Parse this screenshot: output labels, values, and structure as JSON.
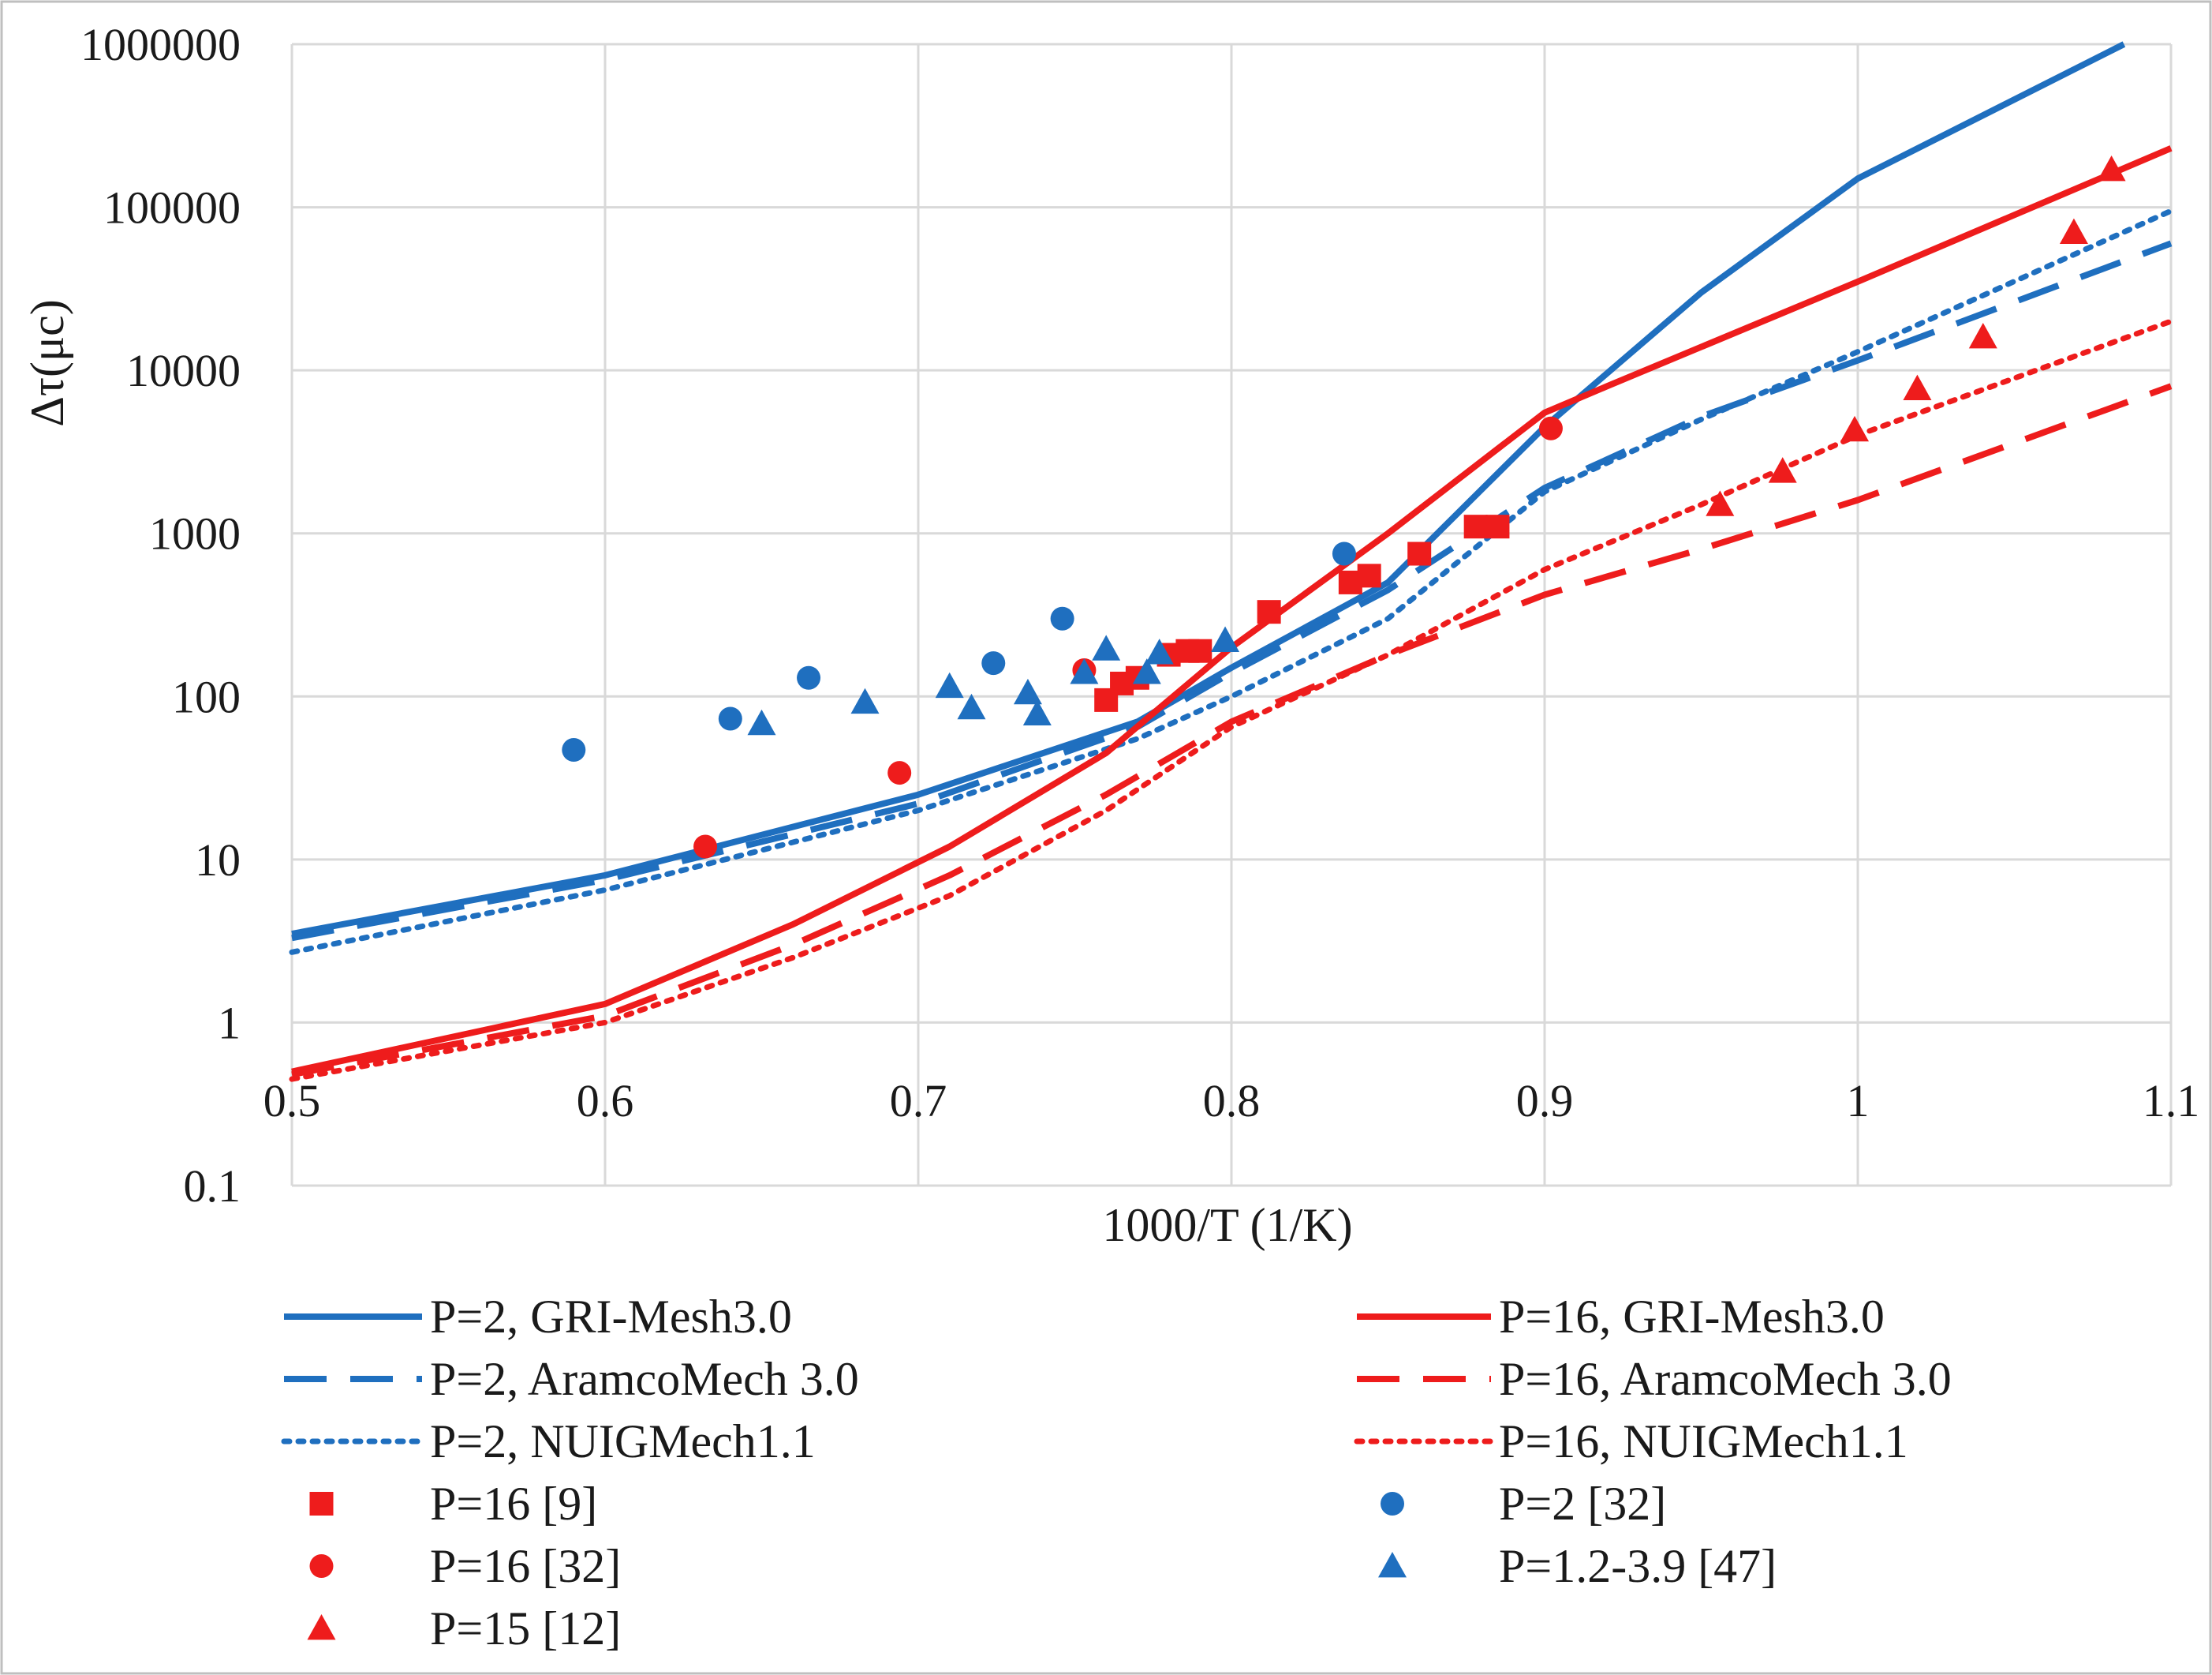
{
  "chart_data": {
    "type": "line",
    "title": "",
    "xlabel": "1000/T (1/K)",
    "ylabel": "Δτ(μc)",
    "xlim": [
      0.5,
      1.1
    ],
    "ylim": [
      0.1,
      1000000
    ],
    "yscale": "log",
    "grid": true,
    "x_ticks": [
      "0.5",
      "0.6",
      "0.7",
      "0.8",
      "0.9",
      "1",
      "1.1"
    ],
    "y_ticks": [
      "0.1",
      "1",
      "10",
      "100",
      "1000",
      "10000",
      "100000",
      "1000000"
    ],
    "colors": {
      "blue": "#1f6fbf",
      "red": "#ee1c1c"
    },
    "series": [
      {
        "name": "P=2, GRI-Mesh3.0",
        "kind": "line",
        "color": "#1f6fbf",
        "dash": "solid",
        "x": [
          0.5,
          0.6,
          0.7,
          0.77,
          0.8,
          0.85,
          0.9,
          0.95,
          1.0,
          1.085
        ],
        "y": [
          3.5,
          8,
          25,
          70,
          150,
          500,
          4500,
          30000,
          150000,
          1000000
        ]
      },
      {
        "name": "P=2, AramcoMech 3.0",
        "kind": "line",
        "color": "#1f6fbf",
        "dash": "dashed",
        "x": [
          0.5,
          0.6,
          0.7,
          0.77,
          0.8,
          0.85,
          0.9,
          0.95,
          1.0,
          1.1
        ],
        "y": [
          3.3,
          7.5,
          22,
          65,
          140,
          450,
          1900,
          5200,
          11500,
          60000
        ]
      },
      {
        "name": "P=2, NUIGMech1.1",
        "kind": "line",
        "color": "#1f6fbf",
        "dash": "dotted",
        "x": [
          0.5,
          0.6,
          0.7,
          0.77,
          0.8,
          0.85,
          0.9,
          0.95,
          1.0,
          1.1
        ],
        "y": [
          2.7,
          6.5,
          20,
          55,
          100,
          300,
          1800,
          5000,
          13000,
          95000
        ]
      },
      {
        "name": "P=16, GRI-Mesh3.0",
        "kind": "line",
        "color": "#ee1c1c",
        "dash": "solid",
        "x": [
          0.5,
          0.6,
          0.66,
          0.71,
          0.76,
          0.8,
          0.85,
          0.9,
          0.92,
          1.0,
          1.1
        ],
        "y": [
          0.5,
          1.3,
          4,
          12,
          45,
          200,
          1000,
          5500,
          8000,
          35000,
          230000
        ]
      },
      {
        "name": "P=16, AramcoMech 3.0",
        "kind": "line",
        "color": "#ee1c1c",
        "dash": "dashed",
        "x": [
          0.5,
          0.6,
          0.66,
          0.71,
          0.76,
          0.8,
          0.85,
          0.9,
          0.95,
          1.0,
          1.1
        ],
        "y": [
          0.48,
          1.1,
          3,
          8,
          25,
          70,
          180,
          420,
          800,
          1600,
          8000
        ]
      },
      {
        "name": "P=16, NUIGMech1.1",
        "kind": "line",
        "color": "#ee1c1c",
        "dash": "dotted",
        "x": [
          0.5,
          0.6,
          0.66,
          0.71,
          0.76,
          0.8,
          0.85,
          0.9,
          0.95,
          1.0,
          1.1
        ],
        "y": [
          0.45,
          1.0,
          2.5,
          6,
          20,
          65,
          180,
          600,
          1500,
          4000,
          20000
        ]
      },
      {
        "name": "P=16 [9]",
        "kind": "scatter",
        "marker": "square",
        "color": "#ee1c1c",
        "x": [
          0.76,
          0.765,
          0.77,
          0.78,
          0.786,
          0.79,
          0.812,
          0.838,
          0.844,
          0.86,
          0.878,
          0.885
        ],
        "y": [
          95,
          120,
          130,
          180,
          190,
          190,
          330,
          500,
          550,
          750,
          1100,
          1100
        ]
      },
      {
        "name": "P=16 [32]",
        "kind": "scatter",
        "marker": "circle",
        "color": "#ee1c1c",
        "x": [
          0.632,
          0.694,
          0.753,
          0.902
        ],
        "y": [
          12,
          34,
          145,
          4400
        ]
      },
      {
        "name": "P=15 [12]",
        "kind": "scatter",
        "marker": "triangle",
        "color": "#ee1c1c",
        "x": [
          0.956,
          0.976,
          0.999,
          1.019,
          1.04,
          1.069,
          1.081
        ],
        "y": [
          1500,
          2400,
          4300,
          7700,
          16000,
          70000,
          170000
        ]
      },
      {
        "name": "P=2 [32]",
        "kind": "scatter",
        "marker": "circle",
        "color": "#1f6fbf",
        "x": [
          0.59,
          0.64,
          0.665,
          0.724,
          0.746,
          0.836
        ],
        "y": [
          47,
          73,
          130,
          160,
          300,
          750
        ]
      },
      {
        "name": "P=1.2-3.9 [47]",
        "kind": "scatter",
        "marker": "triangle",
        "color": "#1f6fbf",
        "x": [
          0.65,
          0.683,
          0.71,
          0.717,
          0.735,
          0.738,
          0.753,
          0.76,
          0.773,
          0.777,
          0.798
        ],
        "y": [
          68,
          92,
          115,
          85,
          105,
          78,
          140,
          195,
          140,
          185,
          220
        ]
      }
    ],
    "legend": {
      "placement": "bottom",
      "columns": [
        [
          "P=2, GRI-Mesh3.0",
          "P=2, AramcoMech 3.0",
          "P=2, NUIGMech1.1",
          "P=16 [9]",
          "P=16 [32]",
          "P=15 [12]"
        ],
        [
          "P=16, GRI-Mesh3.0",
          "P=16, AramcoMech 3.0",
          "P=16, NUIGMech1.1",
          "P=2 [32]",
          "P=1.2-3.9 [47]"
        ]
      ]
    }
  }
}
